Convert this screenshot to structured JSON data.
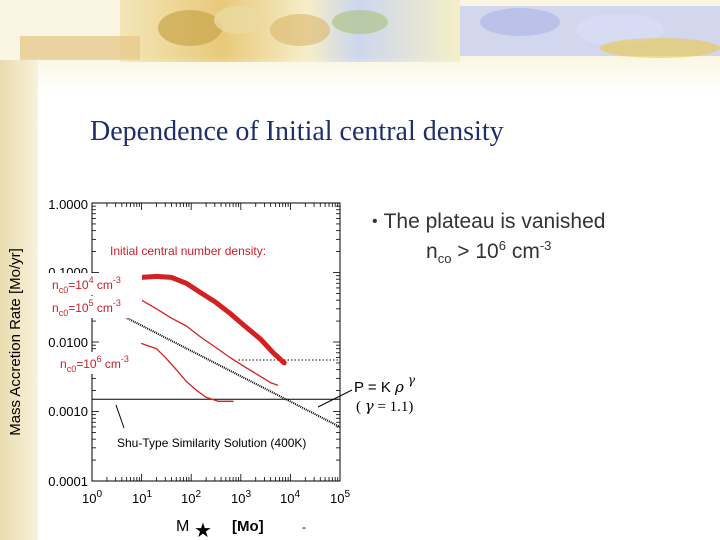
{
  "slide": {
    "title": "Dependence of Initial central density",
    "bullet": {
      "text": "The plateau is vanished",
      "n_symbol": "n",
      "n_sub": "co",
      "relation": " >  10",
      "exp1": "6",
      "unit": " cm",
      "exp2": "-3"
    }
  },
  "chart_data": {
    "type": "line",
    "title": "",
    "ylabel": "Mass Accretion Rate  [Mo/yr]",
    "xlabel": {
      "symbol": "M",
      "star": "★",
      "unit": "[Mo]"
    },
    "x_scale": "log",
    "y_scale": "log",
    "xlim": [
      1,
      100000
    ],
    "ylim": [
      0.0001,
      1.0
    ],
    "x_ticks": [
      {
        "value": 1,
        "base": "10",
        "exp": "0"
      },
      {
        "value": 10,
        "base": "10",
        "exp": "1"
      },
      {
        "value": 100,
        "base": "10",
        "exp": "2"
      },
      {
        "value": 1000,
        "base": "10",
        "exp": "3"
      },
      {
        "value": 10000,
        "base": "10",
        "exp": "4"
      },
      {
        "value": 100000,
        "base": "10",
        "exp": "5"
      }
    ],
    "y_ticks": [
      {
        "value": 1.0,
        "label": "1.0000"
      },
      {
        "value": 0.1,
        "label": "0.1000"
      },
      {
        "value": 0.01,
        "label": "0.0100"
      },
      {
        "value": 0.001,
        "label": "0.0010"
      },
      {
        "value": 0.0001,
        "label": "0.0001"
      }
    ],
    "density_header": "Initial central number density:",
    "series": [
      {
        "name": "nc0=10^4 cm^-3",
        "label": {
          "n": "n",
          "sub": "c0",
          "eq": "=10",
          "exp": "4",
          "unit": " cm",
          "unit_exp": "-3"
        },
        "color": "#d42020",
        "width": 5,
        "points": [
          [
            10,
            0.085
          ],
          [
            20,
            0.088
          ],
          [
            40,
            0.085
          ],
          [
            80,
            0.07
          ],
          [
            150,
            0.052
          ],
          [
            300,
            0.038
          ],
          [
            600,
            0.026
          ],
          [
            1200,
            0.017
          ],
          [
            2500,
            0.011
          ],
          [
            4500,
            0.007
          ],
          [
            7500,
            0.005
          ]
        ]
      },
      {
        "name": "nc0=10^5 cm^-3",
        "label": {
          "n": "n",
          "sub": "c0",
          "eq": "=10",
          "exp": "5",
          "unit": " cm",
          "unit_exp": "-3"
        },
        "color": "#d42020",
        "width": 1.3,
        "points": [
          [
            10,
            0.04
          ],
          [
            20,
            0.03
          ],
          [
            40,
            0.022
          ],
          [
            80,
            0.017
          ],
          [
            150,
            0.012
          ],
          [
            300,
            0.0085
          ],
          [
            600,
            0.006
          ],
          [
            1200,
            0.0044
          ],
          [
            2500,
            0.0032
          ],
          [
            4000,
            0.0026
          ],
          [
            5500,
            0.0024
          ]
        ]
      },
      {
        "name": "nc0=10^6 cm^-3",
        "label": {
          "n": "n",
          "sub": "c0",
          "eq": "=10",
          "exp": "6",
          "unit": " cm",
          "unit_exp": "-3"
        },
        "color": "#d42020",
        "width": 1.3,
        "points": [
          [
            10,
            0.0095
          ],
          [
            20,
            0.008
          ],
          [
            30,
            0.006
          ],
          [
            50,
            0.004
          ],
          [
            80,
            0.0027
          ],
          [
            130,
            0.002
          ],
          [
            200,
            0.0016
          ],
          [
            350,
            0.0014
          ],
          [
            700,
            0.0014
          ]
        ]
      }
    ],
    "shu_line": {
      "label": "Shu-Type Similarity Solution (400K)",
      "color": "#000000",
      "points": [
        [
          1,
          0.04
        ],
        [
          100000,
          0.0006
        ]
      ]
    },
    "reference_lines": [
      {
        "y": 0.0055,
        "x_from": 900,
        "x_to": 100000,
        "style": "dotted"
      },
      {
        "y": 0.0015,
        "x_from": 1,
        "x_to": 100000,
        "style": "solid"
      }
    ],
    "annotation": {
      "eos": "P = K ",
      "rho": "ρ",
      "gamma": "γ",
      "paren_open": "( ",
      "gamma_value": " = 1.1)"
    },
    "stray_mark": "-"
  }
}
